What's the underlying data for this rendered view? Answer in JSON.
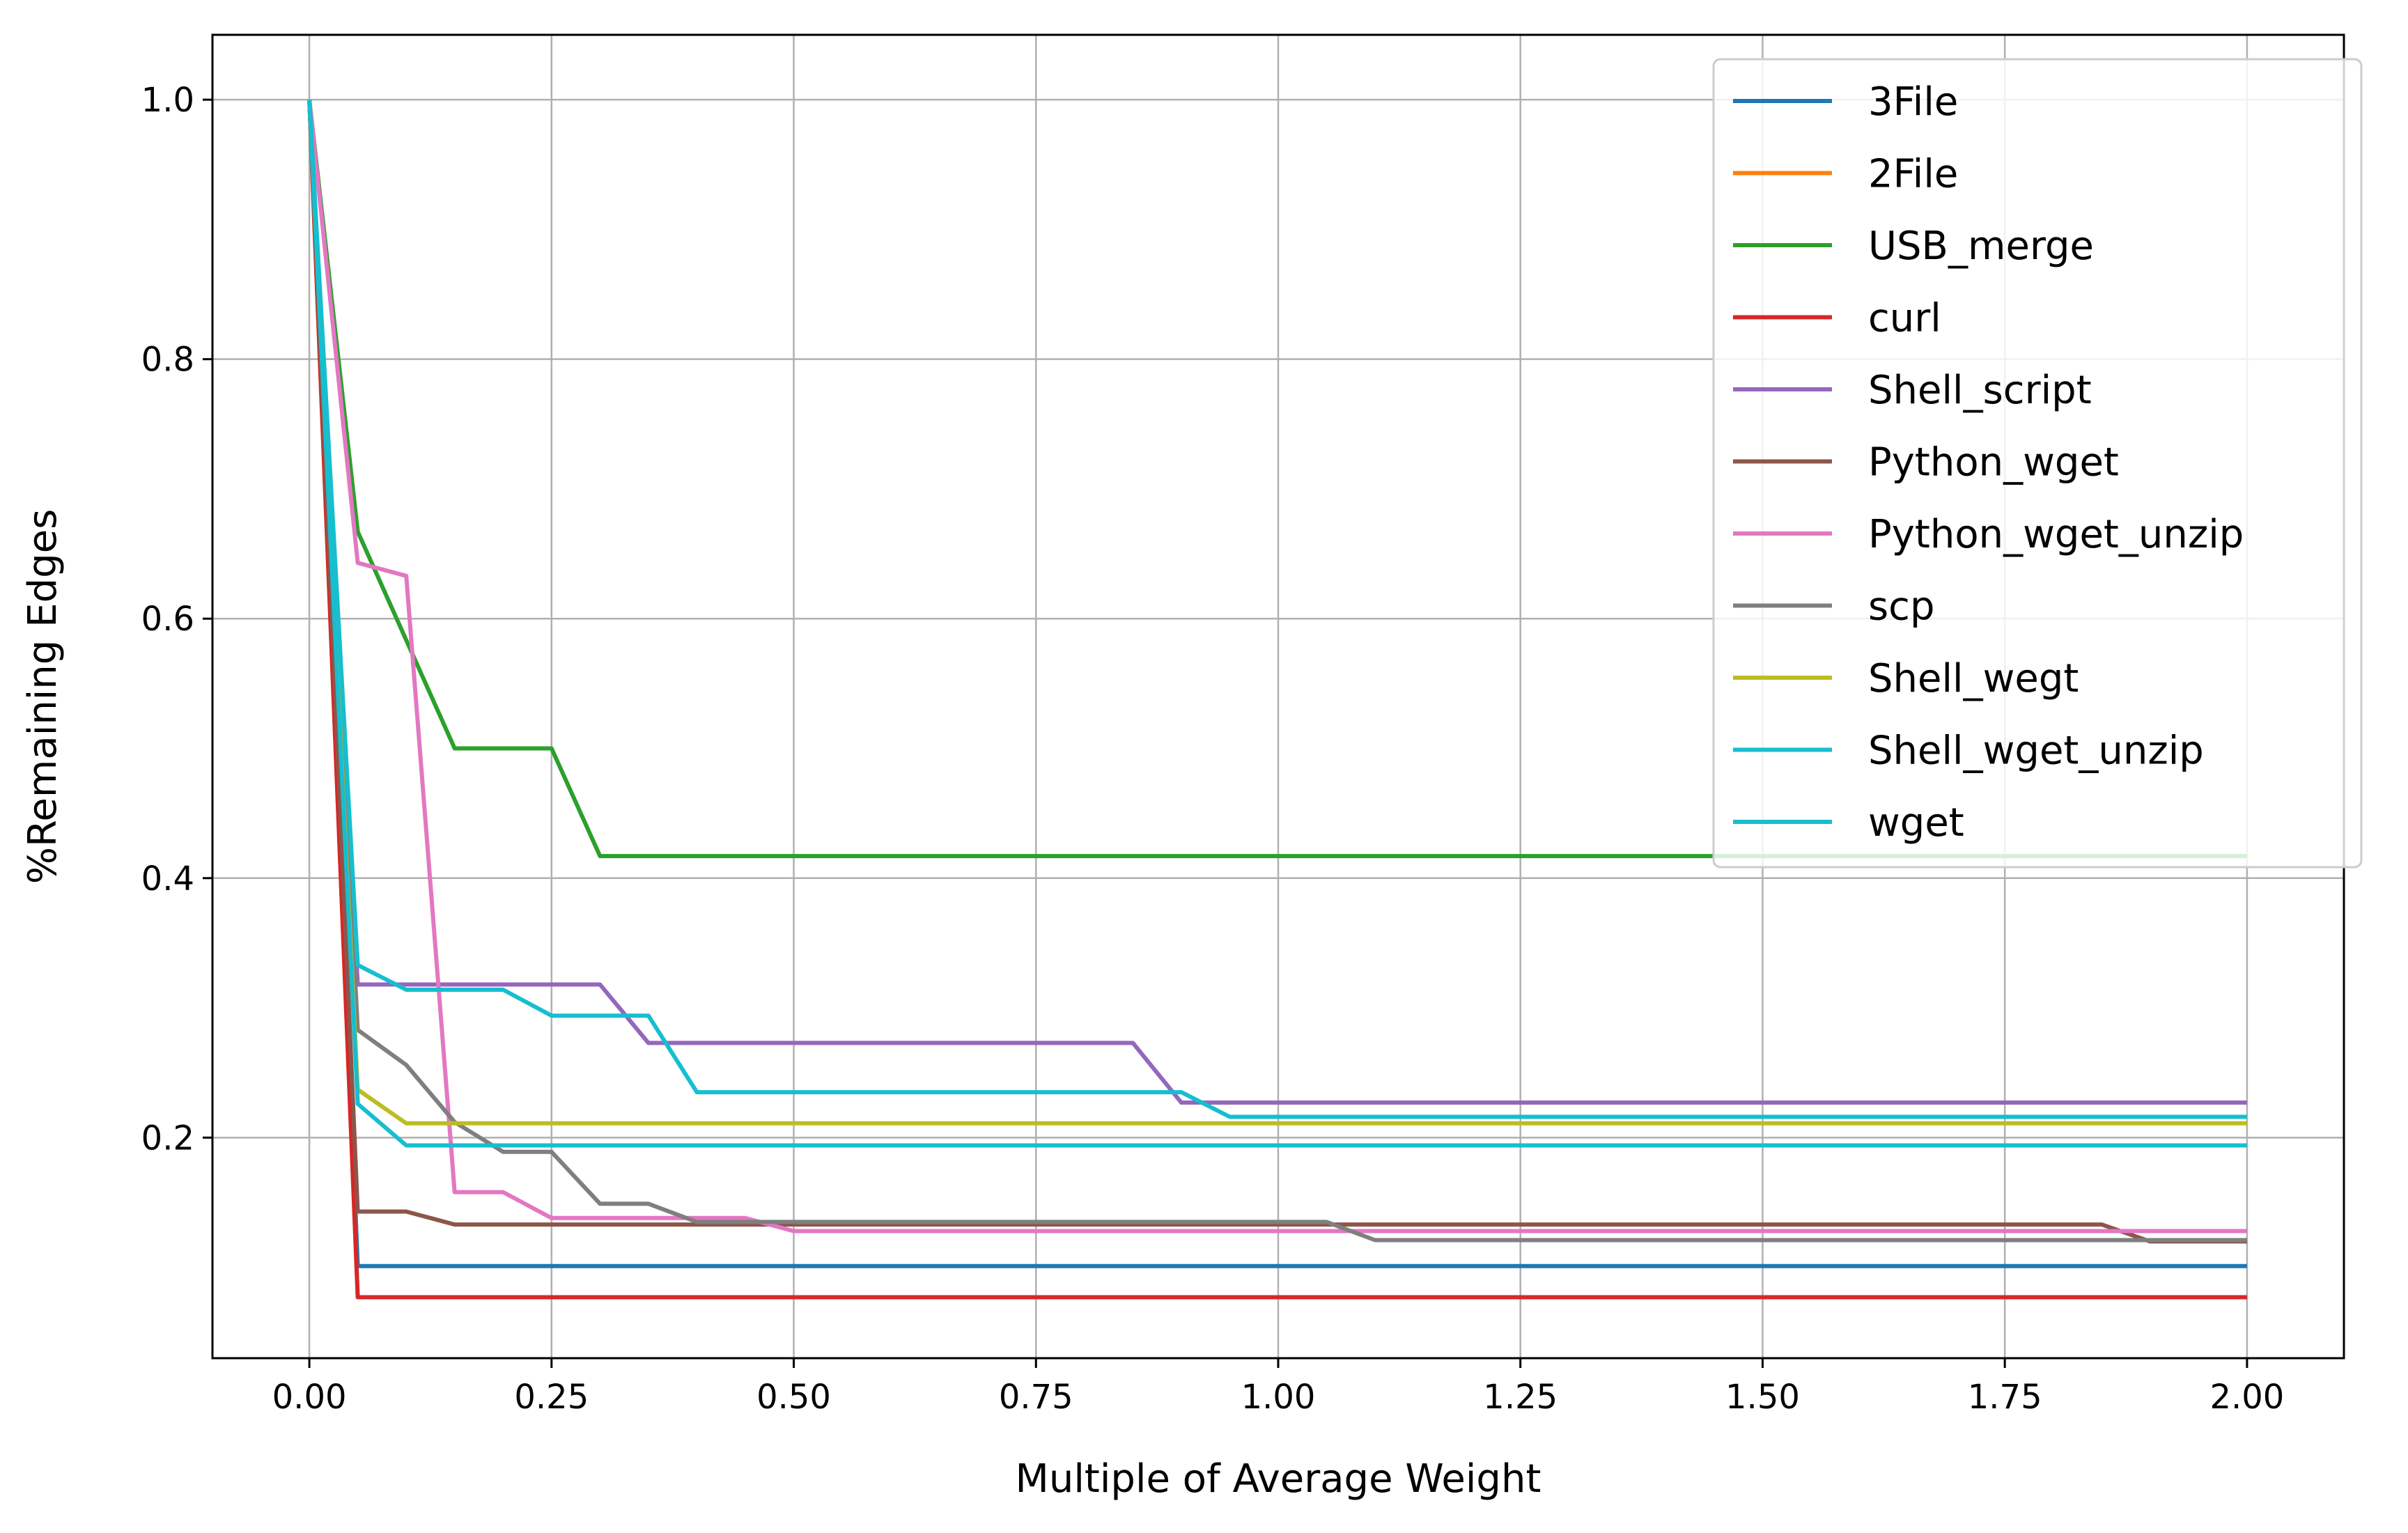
{
  "chart_data": {
    "type": "line",
    "xlabel": "Multiple of Average Weight",
    "ylabel": "%Remaining Edges",
    "xlim": [
      -0.1,
      2.1
    ],
    "ylim": [
      0.03,
      1.05
    ],
    "xticks": [
      0.0,
      0.25,
      0.5,
      0.75,
      1.0,
      1.25,
      1.5,
      1.75,
      2.0
    ],
    "xtick_labels": [
      "0.00",
      "0.25",
      "0.50",
      "0.75",
      "1.00",
      "1.25",
      "1.50",
      "1.75",
      "2.00"
    ],
    "yticks": [
      0.2,
      0.4,
      0.6,
      0.8,
      1.0
    ],
    "ytick_labels": [
      "0.2",
      "0.4",
      "0.6",
      "0.8",
      "1.0"
    ],
    "grid": true,
    "legend_position": "top-right",
    "series": [
      {
        "name": "3File",
        "color": "#1f77b4",
        "points": [
          [
            0.0,
            1.0
          ],
          [
            0.05,
            0.101
          ],
          [
            2.0,
            0.101
          ]
        ]
      },
      {
        "name": "2File",
        "color": "#ff7f0e",
        "points": [
          [
            0.0,
            1.0
          ],
          [
            0.05,
            0.077
          ],
          [
            2.0,
            0.077
          ]
        ]
      },
      {
        "name": "USB_merge",
        "color": "#2ca02c",
        "points": [
          [
            0.0,
            1.0
          ],
          [
            0.05,
            0.667
          ],
          [
            0.15,
            0.5
          ],
          [
            0.25,
            0.5
          ],
          [
            0.3,
            0.417
          ],
          [
            2.0,
            0.417
          ]
        ]
      },
      {
        "name": "curl",
        "color": "#d62728",
        "points": [
          [
            0.0,
            1.0
          ],
          [
            0.05,
            0.077
          ],
          [
            2.0,
            0.077
          ]
        ]
      },
      {
        "name": "Shell_script",
        "color": "#9467bd",
        "points": [
          [
            0.0,
            1.0
          ],
          [
            0.05,
            0.318
          ],
          [
            0.3,
            0.318
          ],
          [
            0.35,
            0.273
          ],
          [
            0.85,
            0.273
          ],
          [
            0.9,
            0.227
          ],
          [
            2.0,
            0.227
          ]
        ]
      },
      {
        "name": "Python_wget",
        "color": "#8c564b",
        "points": [
          [
            0.0,
            1.0
          ],
          [
            0.05,
            0.143
          ],
          [
            0.1,
            0.143
          ],
          [
            0.15,
            0.133
          ],
          [
            1.85,
            0.133
          ],
          [
            1.9,
            0.12
          ],
          [
            2.0,
            0.12
          ]
        ]
      },
      {
        "name": "Python_wget_unzip",
        "color": "#e377c2",
        "points": [
          [
            0.0,
            1.0
          ],
          [
            0.05,
            0.643
          ],
          [
            0.1,
            0.633
          ],
          [
            0.15,
            0.158
          ],
          [
            0.2,
            0.158
          ],
          [
            0.25,
            0.138
          ],
          [
            0.45,
            0.138
          ],
          [
            0.5,
            0.128
          ],
          [
            2.0,
            0.128
          ]
        ]
      },
      {
        "name": "scp",
        "color": "#7f7f7f",
        "points": [
          [
            0.0,
            1.0
          ],
          [
            0.05,
            0.283
          ],
          [
            0.1,
            0.256
          ],
          [
            0.15,
            0.212
          ],
          [
            0.2,
            0.189
          ],
          [
            0.25,
            0.189
          ],
          [
            0.3,
            0.149
          ],
          [
            0.35,
            0.149
          ],
          [
            0.4,
            0.135
          ],
          [
            1.05,
            0.135
          ],
          [
            1.1,
            0.121
          ],
          [
            2.0,
            0.121
          ]
        ]
      },
      {
        "name": "Shell_wegt",
        "color": "#bcbd22",
        "points": [
          [
            0.0,
            1.0
          ],
          [
            0.05,
            0.237
          ],
          [
            0.1,
            0.211
          ],
          [
            2.0,
            0.211
          ]
        ]
      },
      {
        "name": "Shell_wget_unzip",
        "color": "#17becf",
        "points": [
          [
            0.0,
            1.0
          ],
          [
            0.05,
            0.333
          ],
          [
            0.1,
            0.314
          ],
          [
            0.2,
            0.314
          ],
          [
            0.25,
            0.294
          ],
          [
            0.35,
            0.294
          ],
          [
            0.4,
            0.235
          ],
          [
            0.9,
            0.235
          ],
          [
            0.95,
            0.216
          ],
          [
            2.0,
            0.216
          ]
        ]
      },
      {
        "name": "wget",
        "color": "#17becf",
        "points": [
          [
            0.0,
            1.0
          ],
          [
            0.05,
            0.226
          ],
          [
            0.1,
            0.194
          ],
          [
            2.0,
            0.194
          ]
        ]
      }
    ]
  }
}
